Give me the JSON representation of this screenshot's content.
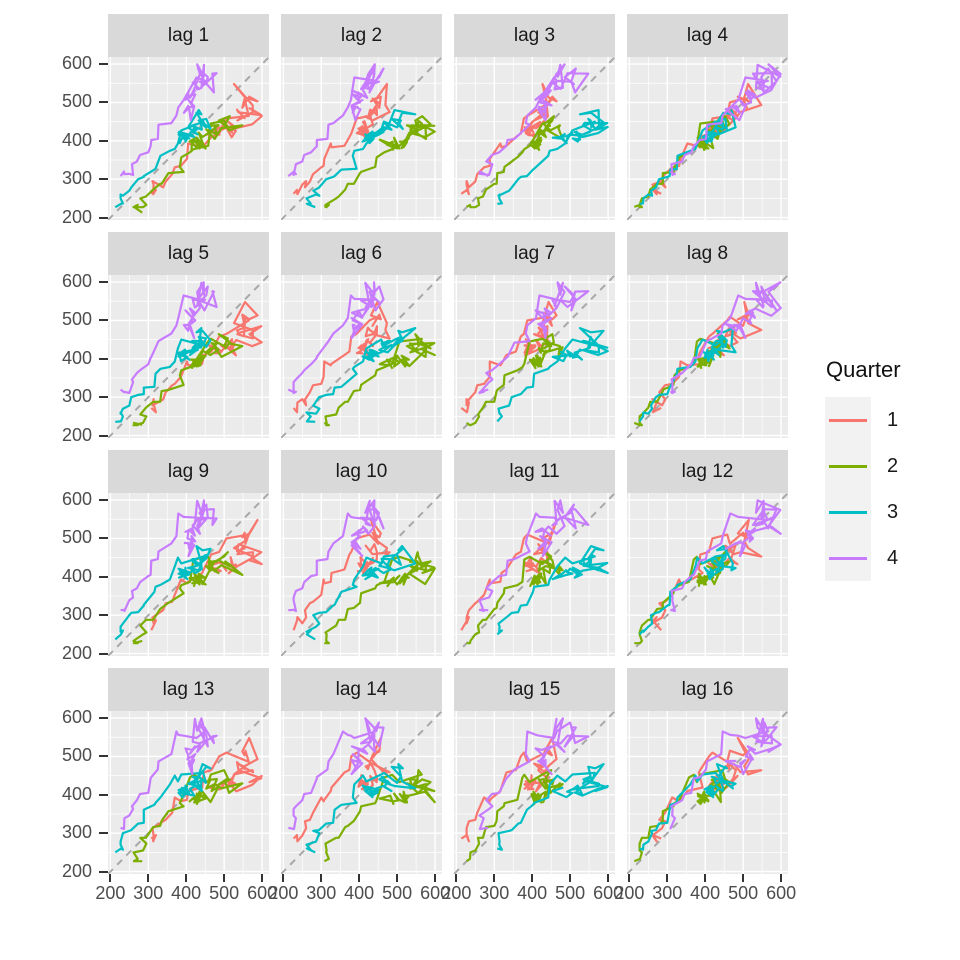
{
  "chart_data": {
    "type": "line",
    "subtype": "faceted-lag-plot-paths",
    "facets": [
      "lag 1",
      "lag 2",
      "lag 3",
      "lag 4",
      "lag 5",
      "lag 6",
      "lag 7",
      "lag 8",
      "lag 9",
      "lag 10",
      "lag 11",
      "lag 12",
      "lag 13",
      "lag 14",
      "lag 15",
      "lag 16"
    ],
    "lags": [
      1,
      2,
      3,
      4,
      5,
      6,
      7,
      8,
      9,
      10,
      11,
      12,
      13,
      14,
      15,
      16
    ],
    "axis_ticks": {
      "values": [
        200,
        300,
        400,
        500,
        600
      ],
      "labels": [
        "200",
        "300",
        "400",
        "500",
        "600"
      ]
    },
    "axis_limits": [
      193.7,
      618.3
    ],
    "grid_minor": [
      250,
      350,
      450,
      550
    ],
    "legend": {
      "title": "Quarter",
      "entries": [
        {
          "label": "1",
          "color": "#F8766D"
        },
        {
          "label": "2",
          "color": "#7CAE00"
        },
        {
          "label": "3",
          "color": "#00BFC4"
        },
        {
          "label": "4",
          "color": "#C77CFF"
        }
      ]
    },
    "reference_line": {
      "slope": 1,
      "intercept": 0,
      "linetype": "dashed",
      "color": "#A8A8A8"
    },
    "series": {
      "frequency": "quarterly",
      "first_quarter": 1,
      "note": "Facet 'lag k' plots a path of points (value[t-k], value[t]) for each quarter group; colour = quarter of t.",
      "values": [
        284,
        213,
        227,
        308,
        262,
        228,
        236,
        320,
        272,
        233,
        237,
        313,
        261,
        227,
        250,
        314,
        286,
        227,
        260,
        311,
        295,
        233,
        257,
        339,
        279,
        250,
        270,
        346,
        294,
        255,
        278,
        363,
        313,
        273,
        300,
        370,
        331,
        288,
        306,
        386,
        335,
        288,
        308,
        402,
        353,
        316,
        325,
        405,
        393,
        319,
        327,
        442,
        383,
        332,
        361,
        446,
        387,
        357,
        374,
        466,
        410,
        370,
        379,
        487,
        419,
        378,
        393,
        506,
        458,
        387,
        427,
        565,
        465,
        445,
        450,
        556,
        500,
        452,
        435,
        554,
        510,
        433,
        453,
        548,
        486,
        453,
        457,
        566,
        515,
        464,
        431,
        588,
        503,
        443,
        448,
        555,
        513,
        427,
        473,
        526,
        548,
        440,
        469,
        575,
        493,
        433,
        480,
        576,
        475,
        405,
        435,
        535,
        453,
        430,
        417,
        552,
        464,
        417,
        423,
        554,
        459,
        428,
        429,
        534,
        481,
        416,
        440,
        538,
        474,
        440,
        447,
        598,
        467,
        439,
        446,
        567,
        485,
        441,
        429,
        599,
        464,
        424,
        436,
        574,
        443,
        410,
        420,
        532,
        433,
        421,
        410,
        512,
        449,
        381,
        423,
        531,
        426,
        408,
        416,
        520,
        409,
        398,
        398,
        507,
        432,
        398,
        406,
        526,
        428,
        397,
        403,
        517,
        435,
        383,
        424,
        521,
        421,
        402,
        414,
        500,
        451,
        380,
        416,
        492,
        428,
        408,
        406,
        506,
        435,
        380,
        421,
        490,
        435,
        390,
        412,
        454,
        416,
        403,
        408,
        482,
        438,
        386,
        405,
        491,
        427,
        383,
        394,
        473,
        420,
        390,
        410,
        488,
        415,
        398,
        419,
        488,
        414,
        374
      ]
    }
  },
  "style": {
    "background": "#FFFFFF",
    "panel_bg": "#EBEBEB",
    "strip_bg": "#D9D9D9",
    "strip_text": "#1A1A1A",
    "grid_color": "#FFFFFF",
    "axis_text": "#4D4D4D",
    "tick_mark": "#333333",
    "legend_key_bg": "#F2F2F2"
  }
}
